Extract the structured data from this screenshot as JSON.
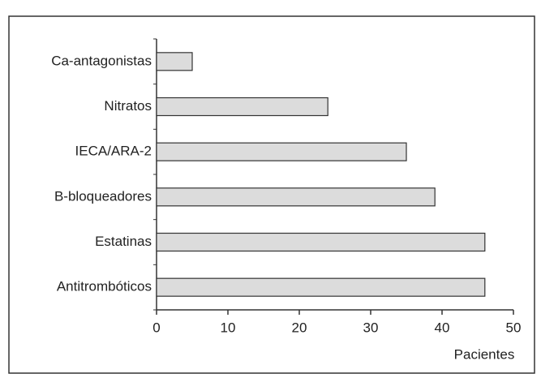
{
  "chart_data": {
    "type": "bar",
    "orientation": "horizontal",
    "categories": [
      "Ca-antagonistas",
      "Nitratos",
      "IECA/ARA-2",
      "B-bloqueadores",
      "Estatinas",
      "Antitrombóticos"
    ],
    "values": [
      5,
      24,
      35,
      39,
      46,
      46
    ],
    "color": "#dcdcdc",
    "xlabel": "Pacientes",
    "xlim": [
      0,
      50
    ],
    "xticks": [
      0,
      10,
      20,
      30,
      40,
      50
    ],
    "grid": false
  }
}
